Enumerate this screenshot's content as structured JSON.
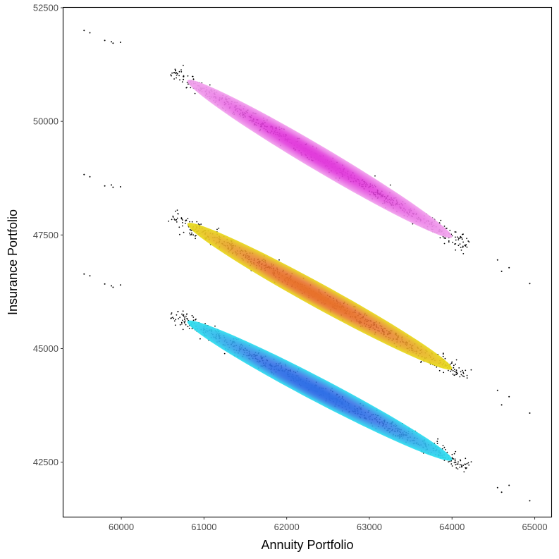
{
  "chart_data": {
    "type": "scatter",
    "title": "",
    "xlabel": "Annuity Portfolio",
    "ylabel": "Insurance Portfolio",
    "xlim": [
      59300,
      65200
    ],
    "ylim": [
      41300,
      52500
    ],
    "x_ticks": [
      60000,
      61000,
      62000,
      63000,
      64000,
      65000
    ],
    "y_ticks": [
      42500,
      45000,
      47500,
      50000,
      52500
    ],
    "x_tick_labels": [
      "60000",
      "61000",
      "62000",
      "63000",
      "64000",
      "65000"
    ],
    "y_tick_labels": [
      "42500",
      "45000",
      "47500",
      "50000",
      "52500"
    ],
    "grid": false,
    "series": [
      {
        "color_scale": [
          "#f2a7ee",
          "#e23cdc"
        ],
        "x_start": 60800,
        "y_start": 50900,
        "x_end": 64000,
        "y_end": 47450,
        "peak_x": 62300,
        "peak_y": 49300,
        "outliers": [
          [
            59550,
            52000
          ],
          [
            59620,
            51950
          ],
          [
            59800,
            51780
          ],
          [
            59880,
            51750
          ],
          [
            59900,
            51720
          ],
          [
            59990,
            51740
          ],
          [
            64550,
            46950
          ],
          [
            64600,
            46700
          ],
          [
            64690,
            46780
          ],
          [
            64940,
            46430
          ]
        ]
      },
      {
        "color_scale": [
          "#e8dd1e",
          "#e8712a"
        ],
        "x_start": 60800,
        "y_start": 47750,
        "x_end": 64000,
        "y_end": 44550,
        "peak_x": 62300,
        "peak_y": 46200,
        "outliers": [
          [
            59550,
            48830
          ],
          [
            59620,
            48780
          ],
          [
            59800,
            48580
          ],
          [
            59880,
            48600
          ],
          [
            59900,
            48550
          ],
          [
            59990,
            48560
          ],
          [
            64550,
            44080
          ],
          [
            64600,
            43760
          ],
          [
            64690,
            43940
          ],
          [
            64940,
            43580
          ]
        ]
      },
      {
        "color_scale": [
          "#2fe2ef",
          "#2f6fe6"
        ],
        "x_start": 60800,
        "y_start": 45600,
        "x_end": 64000,
        "y_end": 42550,
        "peak_x": 62300,
        "peak_y": 44100,
        "outliers": [
          [
            59550,
            46640
          ],
          [
            59620,
            46600
          ],
          [
            59800,
            46420
          ],
          [
            59880,
            46380
          ],
          [
            59900,
            46350
          ],
          [
            59990,
            46400
          ],
          [
            64550,
            41940
          ],
          [
            64600,
            41840
          ],
          [
            64690,
            41990
          ],
          [
            64940,
            41650
          ]
        ]
      }
    ]
  }
}
